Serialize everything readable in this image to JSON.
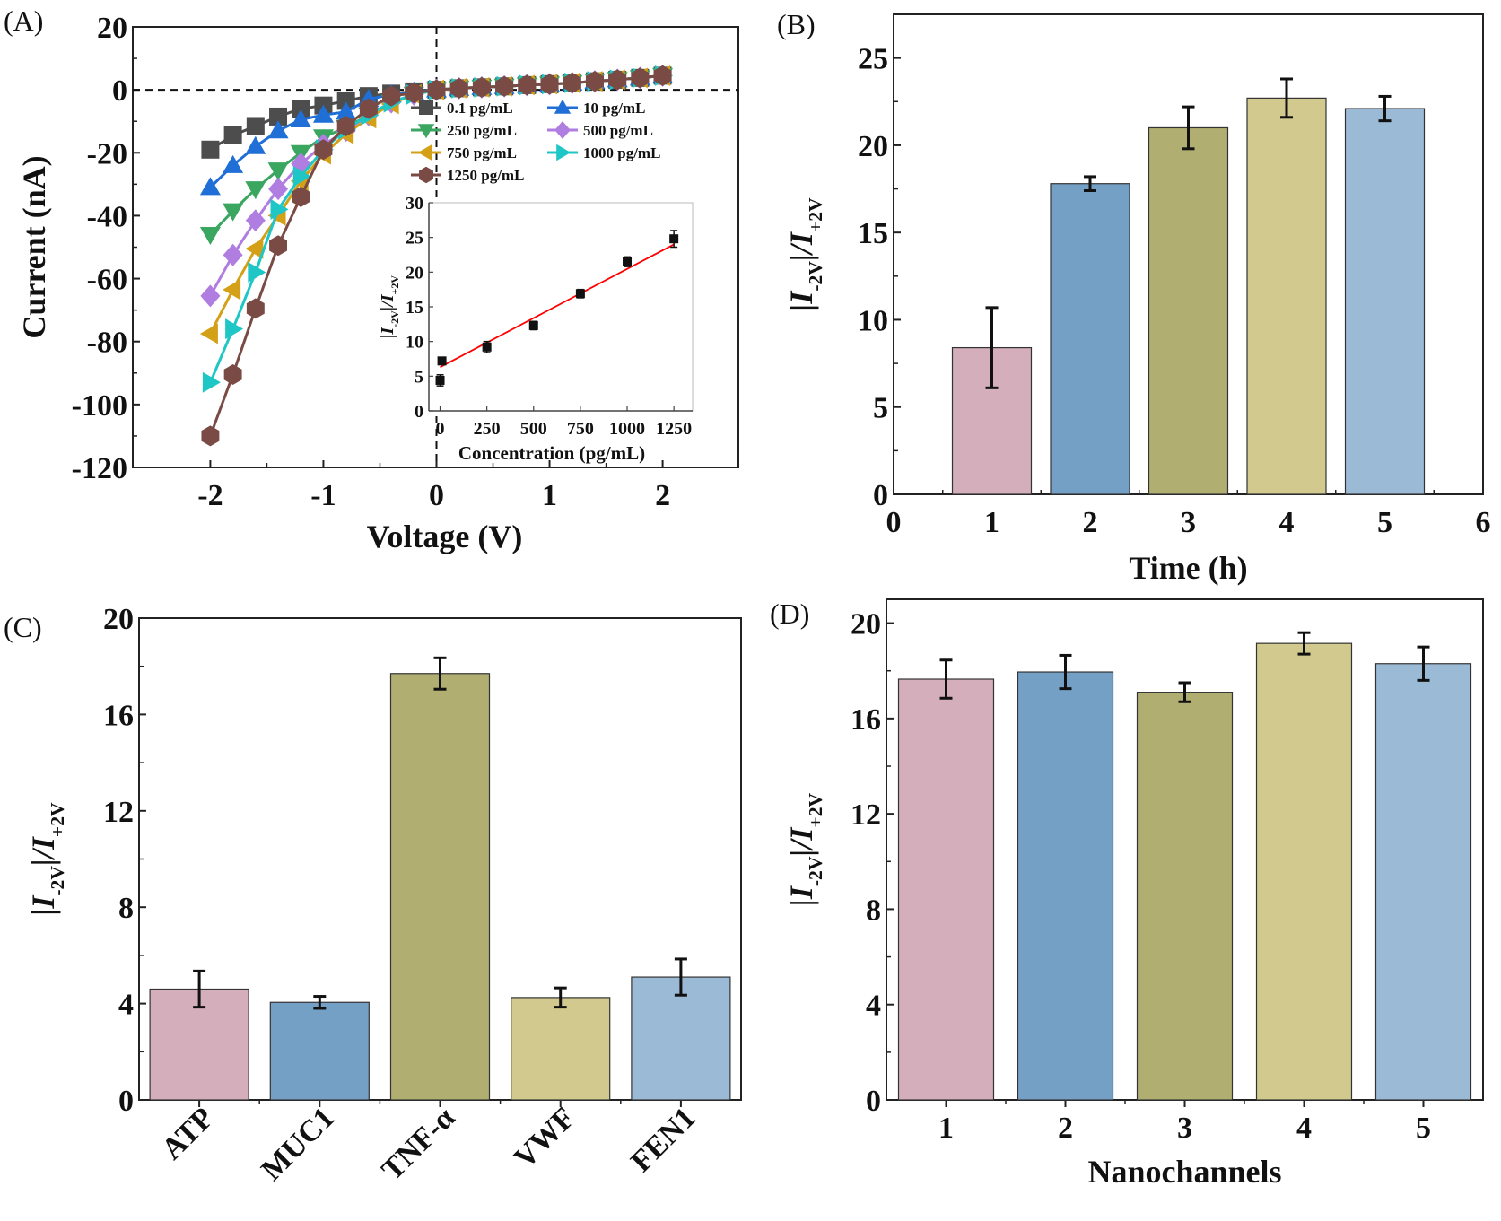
{
  "chart_data": [
    {
      "id": "A",
      "panel_label": "(A)",
      "type": "line",
      "title": "",
      "xlabel": "Voltage (V)",
      "ylabel": "Current (nA)",
      "xlim": [
        -2.4,
        2.4
      ],
      "ylim": [
        -120,
        20
      ],
      "xticks": [
        -2,
        -1,
        0,
        1,
        2
      ],
      "yticks": [
        20,
        0,
        -20,
        -40,
        -60,
        -80,
        -100,
        -120
      ],
      "reference_lines": [
        "x=0 dashed",
        "y=0 dashed"
      ],
      "legend_position": "top-right",
      "x": [
        -2.0,
        -1.8,
        -1.6,
        -1.4,
        -1.2,
        -1.0,
        -0.8,
        -0.6,
        -0.4,
        -0.2,
        0.0,
        0.2,
        0.4,
        0.6,
        0.8,
        1.0,
        1.2,
        1.4,
        1.6,
        1.8,
        2.0
      ],
      "series": [
        {
          "name": "0.1 pg/mL",
          "marker": "square",
          "color": "#4d4d4d",
          "values": [
            -19,
            -14.5,
            -11.5,
            -8.5,
            -6,
            -5,
            -3.5,
            -2,
            -1.2,
            -0.5,
            0,
            0.5,
            0.8,
            1.1,
            1.5,
            1.8,
            2.2,
            2.7,
            3.2,
            3.8,
            4.5
          ]
        },
        {
          "name": "10 pg/mL",
          "marker": "triangle-up",
          "color": "#1f6fd6",
          "values": [
            -31,
            -24,
            -18,
            -13,
            -9.5,
            -8,
            -7,
            -3,
            -1.5,
            -0.6,
            0,
            0.5,
            0.8,
            1.1,
            1.5,
            1.8,
            2.2,
            2.7,
            3.2,
            3.8,
            4.5
          ]
        },
        {
          "name": "250 pg/mL",
          "marker": "triangle-down",
          "color": "#3aa660",
          "values": [
            -46,
            -38.5,
            -31.5,
            -25.5,
            -20,
            -15,
            -12,
            -8,
            -4,
            -1.5,
            0,
            0.5,
            0.8,
            1.1,
            1.5,
            1.8,
            2.2,
            2.7,
            3.2,
            3.8,
            4.5
          ]
        },
        {
          "name": "500 pg/mL",
          "marker": "diamond",
          "color": "#b07de0",
          "values": [
            -65.5,
            -52.5,
            -41.5,
            -31.5,
            -23.5,
            -17.5,
            -13,
            -8,
            -4,
            -1.5,
            0,
            0.5,
            0.8,
            1.1,
            1.5,
            1.8,
            2.2,
            2.7,
            3.2,
            3.8,
            4.5
          ]
        },
        {
          "name": "750 pg/mL",
          "marker": "triangle-left",
          "color": "#d4a017",
          "values": [
            -77.5,
            -63.5,
            -50.5,
            -40,
            -29,
            -20.5,
            -14,
            -9,
            -4.5,
            -1.5,
            0,
            0.5,
            0.8,
            1.1,
            1.5,
            1.8,
            2.2,
            2.7,
            3.2,
            3.8,
            4.5
          ]
        },
        {
          "name": "1000 pg/mL",
          "marker": "triangle-right",
          "color": "#1fc6c6",
          "values": [
            -93,
            -76,
            -58,
            -38,
            -27.5,
            -19,
            -12.5,
            -8,
            -4,
            -1.5,
            0,
            0.5,
            0.8,
            1.1,
            1.5,
            1.8,
            2.2,
            2.7,
            3.2,
            3.8,
            4.5
          ]
        },
        {
          "name": "1250 pg/mL",
          "marker": "hexagon",
          "color": "#7a4a45",
          "values": [
            -110,
            -90.5,
            -69.5,
            -49.5,
            -34,
            -19,
            -11.5,
            -6,
            -2,
            -1,
            0,
            0.5,
            0.8,
            1.1,
            1.5,
            1.8,
            2.2,
            2.7,
            3.2,
            3.8,
            4.5
          ]
        }
      ],
      "inset": {
        "type": "scatter",
        "xlabel": "Concentration (pg/mL)",
        "ylabel": "|I-2V|/I+2V",
        "ylabel_main": "|I",
        "ylabel_sub1": "-2V",
        "ylabel_mid": "|/I",
        "ylabel_sub2": "+2V",
        "xlim": [
          -60,
          1350
        ],
        "ylim": [
          0,
          30
        ],
        "xticks": [
          0,
          250,
          500,
          750,
          1000,
          1250
        ],
        "xtick_labels": [
          "0",
          "250",
          "500",
          "750",
          "1000",
          "1250"
        ],
        "yticks": [
          0,
          5,
          10,
          15,
          20,
          25,
          30
        ],
        "points": [
          {
            "x": 0.1,
            "y": 4.4,
            "err": 0.8
          },
          {
            "x": 10,
            "y": 7.2,
            "err": 0.5
          },
          {
            "x": 250,
            "y": 9.2,
            "err": 0.8
          },
          {
            "x": 500,
            "y": 12.3,
            "err": 0.6
          },
          {
            "x": 750,
            "y": 16.9,
            "err": 0.6
          },
          {
            "x": 1000,
            "y": 21.5,
            "err": 0.7
          },
          {
            "x": 1250,
            "y": 24.8,
            "err": 1.2
          }
        ],
        "fit_line": {
          "color": "#ff0000",
          "x": [
            0,
            1250
          ],
          "y": [
            6.3,
            24.0
          ]
        }
      }
    },
    {
      "id": "B",
      "panel_label": "(B)",
      "type": "bar",
      "xlabel": "Time (h)",
      "ylabel_main": "|I",
      "ylabel_sub1": "-2V",
      "ylabel_mid": "|/I",
      "ylabel_sub2": "+2V",
      "xlim": [
        0,
        6
      ],
      "ylim": [
        0,
        27.5
      ],
      "xticks": [
        0,
        1,
        2,
        3,
        4,
        5,
        6
      ],
      "yticks": [
        0,
        5,
        10,
        15,
        20,
        25
      ],
      "categories": [
        "1",
        "2",
        "3",
        "4",
        "5"
      ],
      "x": [
        1,
        2,
        3,
        4,
        5
      ],
      "values": [
        8.4,
        17.8,
        21.0,
        22.7,
        22.1
      ],
      "errors": [
        2.3,
        0.4,
        1.2,
        1.1,
        0.7
      ],
      "colors": [
        "#d4afbb",
        "#75a0c6",
        "#b1ae72",
        "#d2c98f",
        "#9bbad6"
      ]
    },
    {
      "id": "C",
      "panel_label": "(C)",
      "type": "bar",
      "xlabel": "",
      "ylabel_main": "|I",
      "ylabel_sub1": "-2V",
      "ylabel_mid": "|/I",
      "ylabel_sub2": "+2V",
      "ylim": [
        0,
        20
      ],
      "yticks": [
        0,
        4,
        8,
        12,
        16,
        20
      ],
      "categories": [
        "ATP",
        "MUC1",
        "TNF-α",
        "VWF",
        "FEN1"
      ],
      "values": [
        4.6,
        4.05,
        17.7,
        4.25,
        5.1
      ],
      "errors": [
        0.75,
        0.25,
        0.65,
        0.4,
        0.75
      ],
      "colors": [
        "#d4afbb",
        "#75a0c6",
        "#b1ae72",
        "#d2c98f",
        "#9bbad6"
      ]
    },
    {
      "id": "D",
      "panel_label": "(D)",
      "type": "bar",
      "xlabel": "Nanochannels",
      "ylabel_main": "|I",
      "ylabel_sub1": "-2V",
      "ylabel_mid": "|/I",
      "ylabel_sub2": "+2V",
      "ylim": [
        0,
        21
      ],
      "yticks": [
        0,
        4,
        8,
        12,
        16,
        20
      ],
      "categories": [
        "1",
        "2",
        "3",
        "4",
        "5"
      ],
      "values": [
        17.65,
        17.95,
        17.1,
        19.15,
        18.3
      ],
      "errors": [
        0.8,
        0.7,
        0.4,
        0.45,
        0.7
      ],
      "colors": [
        "#d4afbb",
        "#75a0c6",
        "#b1ae72",
        "#d2c98f",
        "#9bbad6"
      ]
    }
  ]
}
